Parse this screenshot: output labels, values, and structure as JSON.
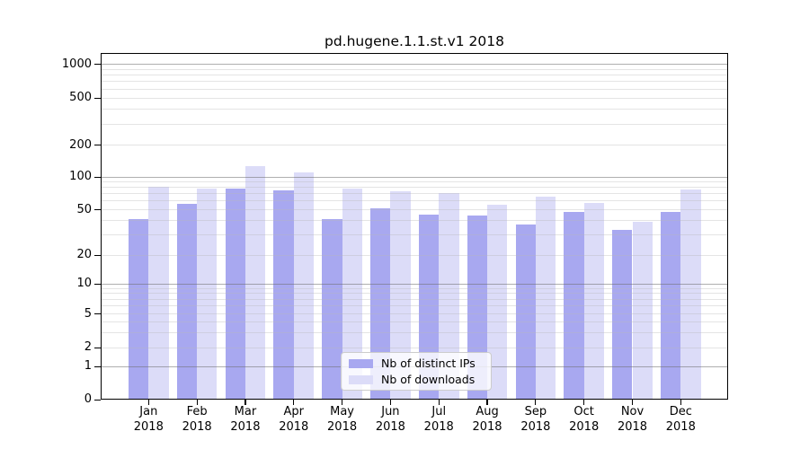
{
  "title": "pd.hugene.1.1.st.v1 2018",
  "chart_data": {
    "type": "bar",
    "title": "pd.hugene.1.1.st.v1 2018",
    "categories": [
      "Jan",
      "Feb",
      "Mar",
      "Apr",
      "May",
      "Jun",
      "Jul",
      "Aug",
      "Sep",
      "Oct",
      "Nov",
      "Dec"
    ],
    "year": "2018",
    "series": [
      {
        "name": "Nb of distinct IPs",
        "color": "#a8a8f0",
        "values": [
          41,
          56,
          78,
          75,
          41,
          51,
          45,
          44,
          37,
          47,
          33,
          47
        ]
      },
      {
        "name": "Nb of downloads",
        "color": "#dcdcf8",
        "values": [
          81,
          78,
          125,
          110,
          78,
          73,
          71,
          55,
          65,
          57,
          39,
          76
        ]
      }
    ],
    "xlabel": "",
    "ylabel": "",
    "yticks": [
      0,
      1,
      2,
      5,
      10,
      20,
      50,
      100,
      200,
      500,
      1000
    ],
    "yscale": "log-like (0,1,2,5,10,20,50,100,200,500,1000)",
    "ylim": [
      0,
      1500
    ],
    "grid": true,
    "legend": [
      "Nb of distinct IPs",
      "Nb of downloads"
    ],
    "legend_position": "inside-bottom-center"
  },
  "colors": {
    "distinct_ips": "#a8a8f0",
    "downloads": "#dcdcf8",
    "grid_major": "#b0b0b0",
    "grid_minor": "#e7e7e7",
    "axis": "#000000",
    "background": "#ffffff"
  }
}
